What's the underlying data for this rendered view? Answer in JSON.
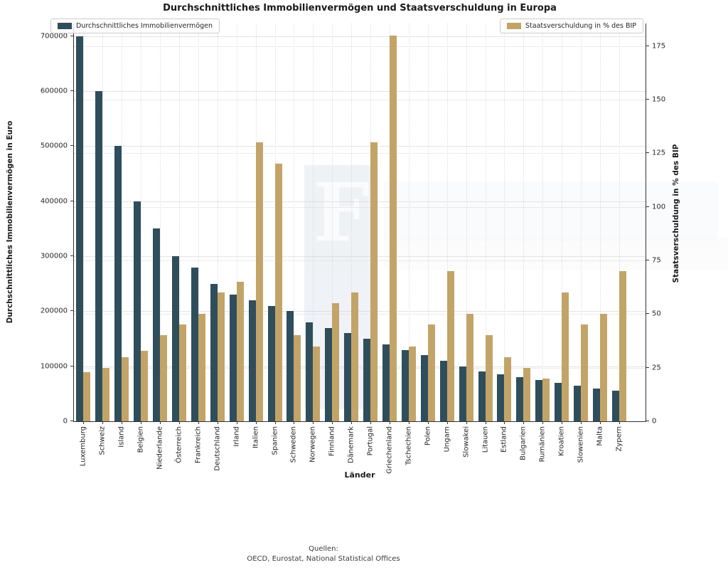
{
  "title": "Durchschnittliches Immobilienvermögen und Staatsverschuldung in Europa",
  "footer": {
    "line1": "Quellen:",
    "line2": "OECD, Eurostat, National Statistical Offices"
  },
  "watermark": {
    "letter": "F"
  },
  "colors": {
    "immobilien_bar": "#2f4e5c",
    "schulden_bar": "#c3a468",
    "grid": "#c9c9c9",
    "spine": "#333333"
  },
  "chart_data": {
    "type": "bar",
    "title": "Durchschnittliches Immobilienvermögen und Staatsverschuldung in Europa",
    "xlabel": "Länder",
    "ylabel_left": "Durchschnittliches Immobilienvermögen in Euro",
    "ylabel_right": "Staatsverschuldung in % des BIP",
    "legend_position": "top-left / top-right inside axes",
    "grid": true,
    "categories": [
      "Luxemburg",
      "Schweiz",
      "Island",
      "Belgien",
      "Niederlande",
      "Österreich",
      "Frankreich",
      "Deutschland",
      "Irland",
      "Italien",
      "Spanien",
      "Schweden",
      "Norwegen",
      "Finnland",
      "Dänemark",
      "Portugal",
      "Griechenland",
      "Tschechien",
      "Polen",
      "Ungarn",
      "Slowakei",
      "Litauen",
      "Estland",
      "Bulgarien",
      "Rumänien",
      "Kroatien",
      "Slowenien",
      "Malta",
      "Zypern"
    ],
    "series": [
      {
        "name": "Durchschnittliches Immobilienvermögen",
        "axis": "left",
        "color": "#2f4e5c",
        "values": [
          700000,
          600000,
          500000,
          400000,
          350000,
          300000,
          280000,
          250000,
          230000,
          220000,
          210000,
          200000,
          180000,
          170000,
          160000,
          150000,
          140000,
          130000,
          120000,
          110000,
          100000,
          90000,
          85000,
          80000,
          75000,
          70000,
          65000,
          60000,
          55000
        ]
      },
      {
        "name": "Staatsverschuldung in % des BIP",
        "axis": "right",
        "color": "#c3a468",
        "values": [
          23,
          25,
          30,
          33,
          40,
          45,
          50,
          60,
          65,
          130,
          120,
          40,
          35,
          55,
          60,
          130,
          180,
          35,
          45,
          70,
          50,
          40,
          30,
          25,
          20,
          60,
          45,
          50,
          70
        ]
      }
    ],
    "y_left": {
      "ticks": [
        0,
        100000,
        200000,
        300000,
        400000,
        500000,
        600000,
        700000
      ],
      "lim": [
        0,
        723000
      ]
    },
    "y_right": {
      "ticks": [
        0,
        25,
        50,
        75,
        100,
        125,
        150,
        175
      ],
      "lim": [
        0,
        185.5
      ]
    }
  }
}
